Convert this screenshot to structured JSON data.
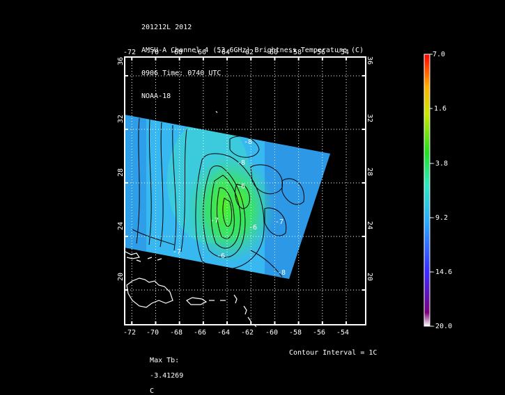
{
  "header": {
    "line1": "201212L 2012",
    "line2": "AMSU-A Channel 4 (53.6GHz) Brightness Temperature (C)",
    "line3": "0906 Time: 0740 UTC",
    "line4": "NOAA-18"
  },
  "map": {
    "lon_ticks": [
      "-72",
      "-70",
      "-68",
      "-66",
      "-64",
      "-62",
      "-60",
      "-58",
      "-56",
      "-54"
    ],
    "lat_ticks": [
      "20",
      "24",
      "28",
      "32",
      "36"
    ],
    "contour_labels": [
      "-8",
      "-8",
      "-7",
      "-6",
      "-6",
      "-7",
      "-6",
      "-7",
      "-8"
    ]
  },
  "colorbar": {
    "labels": [
      "7.0",
      "1.6",
      "-3.8",
      "-9.2",
      "-14.6",
      "-20.0"
    ],
    "range": [
      -20.0,
      7.0
    ]
  },
  "footer": {
    "max_label": "Max Tb:",
    "max_value": "-3.41269",
    "max_unit": "C",
    "contour_text": "Contour Interval = 1C"
  }
}
